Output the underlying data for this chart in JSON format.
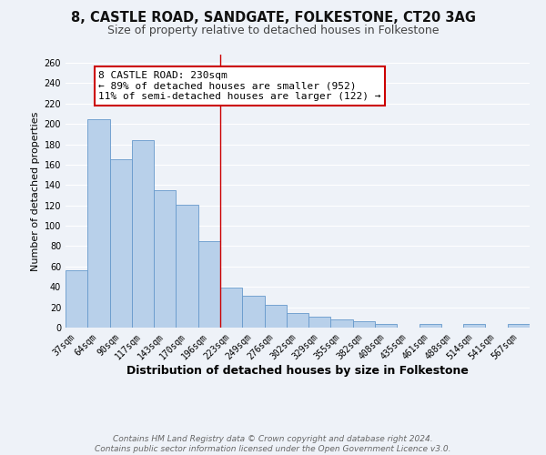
{
  "title": "8, CASTLE ROAD, SANDGATE, FOLKESTONE, CT20 3AG",
  "subtitle": "Size of property relative to detached houses in Folkestone",
  "xlabel": "Distribution of detached houses by size in Folkestone",
  "ylabel": "Number of detached properties",
  "bar_labels": [
    "37sqm",
    "64sqm",
    "90sqm",
    "117sqm",
    "143sqm",
    "170sqm",
    "196sqm",
    "223sqm",
    "249sqm",
    "276sqm",
    "302sqm",
    "329sqm",
    "355sqm",
    "382sqm",
    "408sqm",
    "435sqm",
    "461sqm",
    "488sqm",
    "514sqm",
    "541sqm",
    "567sqm"
  ],
  "bar_values": [
    56,
    205,
    165,
    184,
    135,
    121,
    85,
    39,
    31,
    22,
    14,
    11,
    8,
    6,
    4,
    0,
    4,
    0,
    4,
    0,
    4
  ],
  "bar_color": "#b8d0ea",
  "bar_edge_color": "#6699cc",
  "vline_index": 7,
  "vline_color": "#cc0000",
  "annotation_title": "8 CASTLE ROAD: 230sqm",
  "annotation_line1": "← 89% of detached houses are smaller (952)",
  "annotation_line2": "11% of semi-detached houses are larger (122) →",
  "annotation_box_facecolor": "#ffffff",
  "annotation_box_edgecolor": "#cc0000",
  "ylim": [
    0,
    268
  ],
  "yticks": [
    0,
    20,
    40,
    60,
    80,
    100,
    120,
    140,
    160,
    180,
    200,
    220,
    240,
    260
  ],
  "footer_line1": "Contains HM Land Registry data © Crown copyright and database right 2024.",
  "footer_line2": "Contains public sector information licensed under the Open Government Licence v3.0.",
  "background_color": "#eef2f8",
  "grid_color": "#ffffff",
  "title_fontsize": 10.5,
  "subtitle_fontsize": 9,
  "xlabel_fontsize": 9,
  "ylabel_fontsize": 8,
  "tick_fontsize": 7,
  "annot_fontsize": 8,
  "footer_fontsize": 6.5
}
